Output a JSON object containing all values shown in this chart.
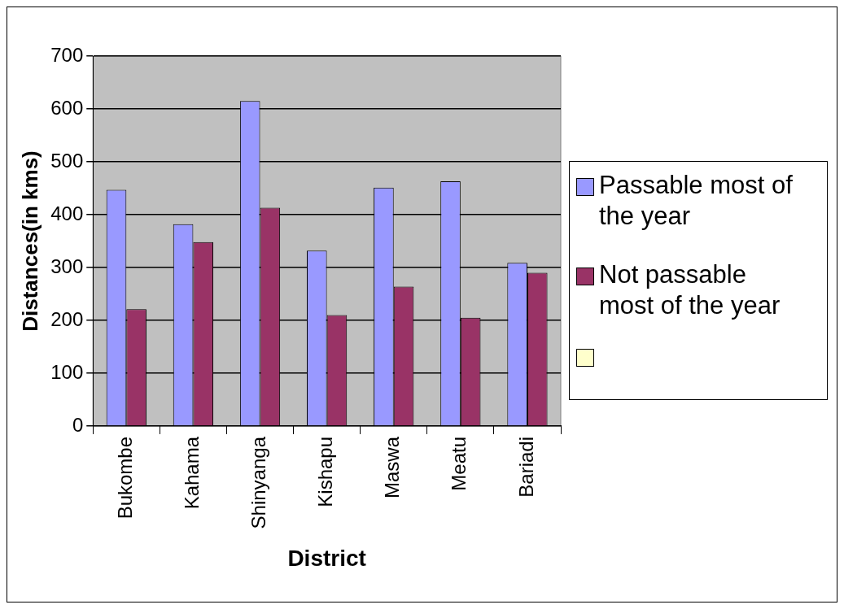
{
  "chart_data": {
    "type": "bar",
    "xlabel": "District",
    "ylabel": "Distances(in kms)",
    "categories": [
      "Bukombe",
      "Kahama",
      "Shinyanga",
      "Kishapu",
      "Maswa",
      "Meatu",
      "Bariadi"
    ],
    "series": [
      {
        "name": "Passable most of the year",
        "color": "#9999ff",
        "values": [
          447,
          382,
          615,
          332,
          451,
          463,
          309
        ]
      },
      {
        "name": "Not passable most of the year",
        "color": "#993366",
        "values": [
          221,
          348,
          413,
          210,
          264,
          205,
          290
        ]
      }
    ],
    "ylim": [
      0,
      700
    ],
    "yticks": [
      0,
      100,
      200,
      300,
      400,
      500,
      600,
      700
    ],
    "grid": "y",
    "legend": "right"
  }
}
